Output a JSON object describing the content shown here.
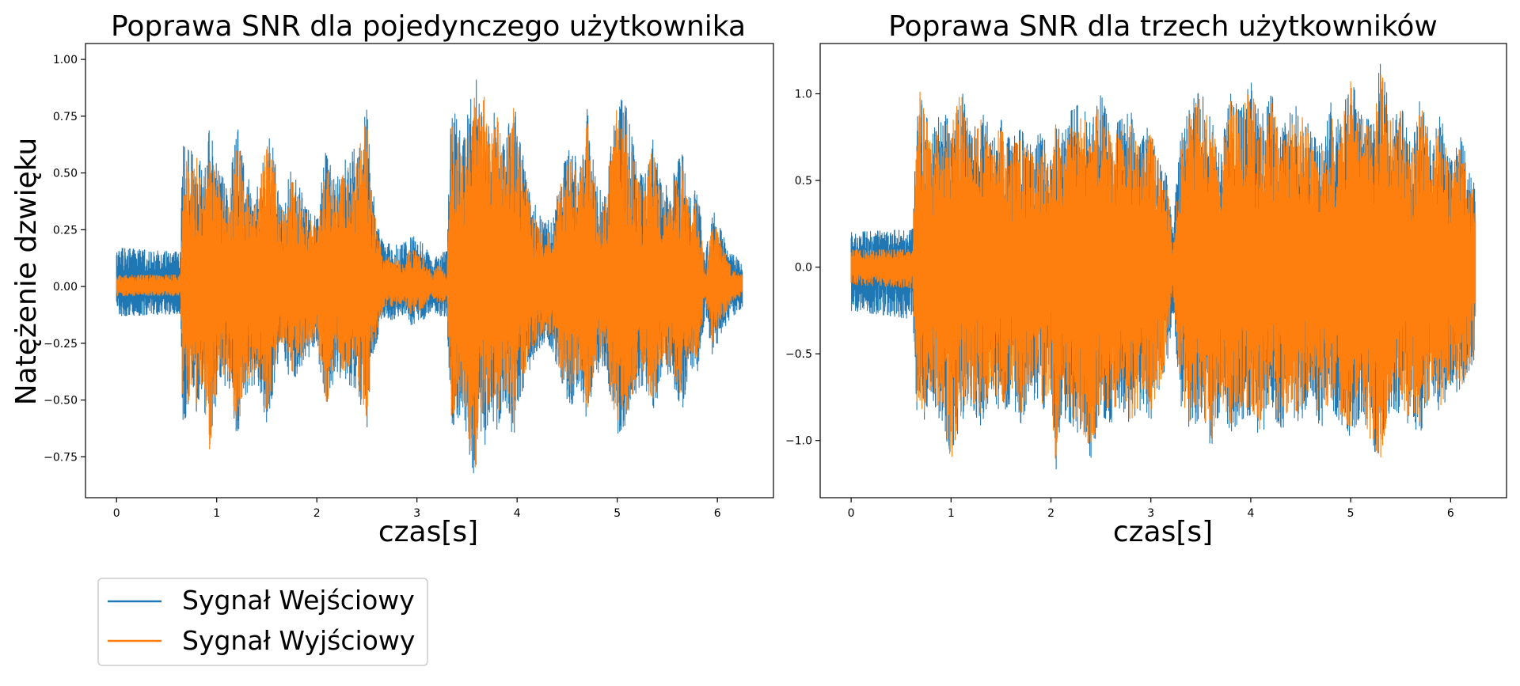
{
  "chart_data": [
    {
      "type": "line",
      "title": "Poprawa SNR dla pojedynczego użytkownika",
      "xlabel": "czas[s]",
      "ylabel": "Natężenie dzwięku",
      "xlim": [
        -0.31,
        6.56
      ],
      "ylim": [
        -0.93,
        1.07
      ],
      "xticks": [
        0,
        1,
        2,
        3,
        4,
        5,
        6
      ],
      "yticks": [
        -0.75,
        -0.5,
        -0.25,
        0.0,
        0.25,
        0.5,
        0.75,
        1.0
      ],
      "ytick_labels": [
        "−0.75",
        "−0.50",
        "−0.25",
        "0.00",
        "0.25",
        "0.50",
        "0.75",
        "1.00"
      ],
      "grid": false,
      "duration_s": 6.25,
      "series": [
        {
          "name": "Sygnał Wejściowy",
          "color": "#1f77b4",
          "noise_floor": 0.1,
          "envelope_x": [
            0.0,
            0.64,
            0.66,
            0.72,
            0.8,
            0.86,
            0.93,
            1.02,
            1.12,
            1.21,
            1.28,
            1.4,
            1.5,
            1.57,
            1.63,
            1.75,
            1.88,
            2.0,
            2.1,
            2.18,
            2.27,
            2.4,
            2.5,
            2.55,
            2.62,
            2.68,
            2.75,
            2.85,
            2.93,
            3.0,
            3.08,
            3.15,
            3.22,
            3.3,
            3.34,
            3.38,
            3.45,
            3.53,
            3.58,
            3.63,
            3.68,
            3.72,
            3.8,
            3.88,
            3.96,
            4.02,
            4.1,
            4.18,
            4.26,
            4.35,
            4.45,
            4.55,
            4.62,
            4.7,
            4.78,
            4.87,
            4.93,
            5.0,
            5.1,
            5.2,
            5.27,
            5.35,
            5.45,
            5.55,
            5.65,
            5.72,
            5.8,
            5.88,
            5.95,
            6.05,
            6.15,
            6.25
          ],
          "envelope_max": [
            0.17,
            0.15,
            0.62,
            0.6,
            0.62,
            0.5,
            0.7,
            0.5,
            0.45,
            0.7,
            0.5,
            0.42,
            0.68,
            0.6,
            0.35,
            0.52,
            0.38,
            0.3,
            0.63,
            0.45,
            0.55,
            0.62,
            0.78,
            0.45,
            0.25,
            0.18,
            0.2,
            0.18,
            0.23,
            0.21,
            0.18,
            0.12,
            0.17,
            0.17,
            0.8,
            0.76,
            0.65,
            0.8,
            0.96,
            0.8,
            0.87,
            0.7,
            0.8,
            0.6,
            0.85,
            0.65,
            0.5,
            0.36,
            0.28,
            0.3,
            0.55,
            0.65,
            0.48,
            0.78,
            0.48,
            0.38,
            0.62,
            0.85,
            0.78,
            0.52,
            0.47,
            0.66,
            0.42,
            0.48,
            0.6,
            0.38,
            0.44,
            0.13,
            0.35,
            0.23,
            0.14,
            0.12
          ],
          "envelope_min": [
            -0.13,
            -0.12,
            -0.6,
            -0.55,
            -0.6,
            -0.5,
            -0.68,
            -0.45,
            -0.43,
            -0.68,
            -0.48,
            -0.42,
            -0.6,
            -0.45,
            -0.28,
            -0.43,
            -0.33,
            -0.27,
            -0.57,
            -0.38,
            -0.42,
            -0.45,
            -0.63,
            -0.35,
            -0.2,
            -0.13,
            -0.15,
            -0.12,
            -0.17,
            -0.16,
            -0.14,
            -0.1,
            -0.13,
            -0.13,
            -0.62,
            -0.6,
            -0.55,
            -0.75,
            -0.85,
            -0.62,
            -0.7,
            -0.55,
            -0.63,
            -0.5,
            -0.68,
            -0.5,
            -0.4,
            -0.3,
            -0.25,
            -0.28,
            -0.48,
            -0.52,
            -0.41,
            -0.6,
            -0.4,
            -0.34,
            -0.52,
            -0.65,
            -0.6,
            -0.45,
            -0.43,
            -0.6,
            -0.38,
            -0.42,
            -0.55,
            -0.35,
            -0.38,
            -0.12,
            -0.3,
            -0.2,
            -0.13,
            -0.1
          ]
        },
        {
          "name": "Sygnał Wyjściowy",
          "color": "#ff7f0e",
          "noise_floor": 0.03,
          "envelope_x": [
            0.0,
            0.64,
            0.66,
            0.72,
            0.8,
            0.86,
            0.93,
            1.02,
            1.12,
            1.21,
            1.28,
            1.4,
            1.5,
            1.57,
            1.63,
            1.75,
            1.88,
            2.0,
            2.1,
            2.18,
            2.27,
            2.4,
            2.5,
            2.55,
            2.62,
            2.68,
            2.75,
            2.85,
            2.93,
            3.0,
            3.08,
            3.15,
            3.22,
            3.3,
            3.34,
            3.38,
            3.45,
            3.53,
            3.58,
            3.63,
            3.68,
            3.72,
            3.8,
            3.88,
            3.96,
            4.02,
            4.1,
            4.18,
            4.26,
            4.35,
            4.45,
            4.55,
            4.62,
            4.7,
            4.78,
            4.87,
            4.93,
            5.0,
            5.1,
            5.2,
            5.27,
            5.35,
            5.45,
            5.55,
            5.65,
            5.72,
            5.8,
            5.88,
            5.95,
            6.05,
            6.15,
            6.25
          ],
          "envelope_max": [
            0.05,
            0.05,
            0.55,
            0.55,
            0.57,
            0.45,
            0.65,
            0.45,
            0.4,
            0.65,
            0.45,
            0.38,
            0.63,
            0.55,
            0.3,
            0.47,
            0.33,
            0.25,
            0.58,
            0.4,
            0.5,
            0.57,
            0.74,
            0.4,
            0.2,
            0.12,
            0.15,
            0.1,
            0.17,
            0.15,
            0.12,
            0.06,
            0.1,
            0.05,
            0.75,
            0.72,
            0.6,
            0.75,
            0.95,
            0.75,
            0.85,
            0.65,
            0.75,
            0.55,
            0.8,
            0.6,
            0.45,
            0.3,
            0.22,
            0.25,
            0.5,
            0.6,
            0.43,
            0.73,
            0.43,
            0.33,
            0.57,
            0.8,
            0.73,
            0.47,
            0.42,
            0.61,
            0.37,
            0.43,
            0.55,
            0.33,
            0.39,
            0.06,
            0.3,
            0.18,
            0.07,
            0.05
          ],
          "envelope_min": [
            -0.04,
            -0.04,
            -0.55,
            -0.5,
            -0.55,
            -0.45,
            -0.72,
            -0.4,
            -0.38,
            -0.64,
            -0.43,
            -0.37,
            -0.55,
            -0.4,
            -0.23,
            -0.38,
            -0.28,
            -0.22,
            -0.52,
            -0.33,
            -0.37,
            -0.4,
            -0.58,
            -0.3,
            -0.15,
            -0.08,
            -0.1,
            -0.07,
            -0.12,
            -0.11,
            -0.09,
            -0.05,
            -0.08,
            -0.05,
            -0.57,
            -0.55,
            -0.5,
            -0.7,
            -0.8,
            -0.57,
            -0.65,
            -0.5,
            -0.58,
            -0.45,
            -0.63,
            -0.45,
            -0.35,
            -0.25,
            -0.2,
            -0.23,
            -0.43,
            -0.47,
            -0.36,
            -0.55,
            -0.35,
            -0.29,
            -0.47,
            -0.6,
            -0.55,
            -0.4,
            -0.38,
            -0.55,
            -0.33,
            -0.37,
            -0.5,
            -0.3,
            -0.33,
            -0.05,
            -0.25,
            -0.15,
            -0.06,
            -0.04
          ]
        }
      ]
    },
    {
      "type": "line",
      "title": "Poprawa SNR dla trzech użytkowników",
      "xlabel": "czas[s]",
      "ylabel": "",
      "xlim": [
        -0.31,
        6.56
      ],
      "ylim": [
        -1.33,
        1.29
      ],
      "xticks": [
        0,
        1,
        2,
        3,
        4,
        5,
        6
      ],
      "yticks": [
        -1.0,
        -0.5,
        0.0,
        0.5,
        1.0
      ],
      "ytick_labels": [
        "−1.0",
        "−0.5",
        "0.0",
        "0.5",
        "1.0"
      ],
      "grid": false,
      "duration_s": 6.25,
      "series": [
        {
          "name": "Sygnał Wejściowy",
          "color": "#1f77b4",
          "noise_floor": 0.25,
          "envelope_x": [
            0.0,
            0.62,
            0.65,
            0.7,
            0.8,
            0.9,
            1.0,
            1.1,
            1.2,
            1.3,
            1.4,
            1.5,
            1.6,
            1.7,
            1.8,
            1.9,
            2.0,
            2.05,
            2.1,
            2.2,
            2.3,
            2.4,
            2.5,
            2.6,
            2.7,
            2.8,
            2.9,
            3.0,
            3.1,
            3.18,
            3.22,
            3.3,
            3.4,
            3.5,
            3.6,
            3.7,
            3.8,
            3.9,
            4.0,
            4.1,
            4.2,
            4.3,
            4.4,
            4.5,
            4.6,
            4.7,
            4.8,
            4.9,
            5.0,
            5.1,
            5.2,
            5.3,
            5.4,
            5.5,
            5.6,
            5.7,
            5.8,
            5.9,
            6.0,
            6.1,
            6.2,
            6.25
          ],
          "envelope_max": [
            0.2,
            0.22,
            0.8,
            1.02,
            0.75,
            0.9,
            0.85,
            1.05,
            0.75,
            0.9,
            0.8,
            0.85,
            0.72,
            0.82,
            0.7,
            0.8,
            0.62,
            0.88,
            0.75,
            0.9,
            0.95,
            0.82,
            1.0,
            0.8,
            0.85,
            0.9,
            0.7,
            0.9,
            0.6,
            0.5,
            0.25,
            0.75,
            0.95,
            1.02,
            0.85,
            0.7,
            1.0,
            0.9,
            1.08,
            0.85,
            1.02,
            0.78,
            0.9,
            0.95,
            0.78,
            0.7,
            0.95,
            0.85,
            1.1,
            0.9,
            0.85,
            1.18,
            0.9,
            0.95,
            0.7,
            1.0,
            0.72,
            0.88,
            0.6,
            0.75,
            0.55,
            0.45
          ],
          "envelope_min": [
            -0.25,
            -0.3,
            -0.8,
            -0.95,
            -0.75,
            -0.9,
            -1.08,
            -0.9,
            -0.8,
            -0.92,
            -0.72,
            -0.85,
            -0.78,
            -0.9,
            -0.72,
            -0.85,
            -0.75,
            -1.18,
            -0.85,
            -0.9,
            -0.98,
            -1.1,
            -0.85,
            -0.9,
            -0.8,
            -0.95,
            -0.82,
            -0.88,
            -0.7,
            -0.5,
            -0.25,
            -0.8,
            -0.95,
            -0.85,
            -1.05,
            -0.8,
            -0.95,
            -0.88,
            -0.85,
            -1.0,
            -0.8,
            -0.95,
            -0.85,
            -0.9,
            -0.72,
            -0.95,
            -0.8,
            -0.9,
            -0.98,
            -0.85,
            -1.05,
            -1.08,
            -0.8,
            -0.85,
            -0.92,
            -0.95,
            -0.78,
            -0.85,
            -0.7,
            -0.75,
            -0.6,
            -0.5
          ]
        },
        {
          "name": "Sygnał Wyjściowy",
          "color": "#ff7f0e",
          "noise_floor": 0.1,
          "envelope_x": [
            0.0,
            0.62,
            0.65,
            0.7,
            0.8,
            0.9,
            1.0,
            1.1,
            1.2,
            1.3,
            1.4,
            1.5,
            1.6,
            1.7,
            1.8,
            1.9,
            2.0,
            2.05,
            2.1,
            2.2,
            2.3,
            2.4,
            2.5,
            2.6,
            2.7,
            2.8,
            2.9,
            3.0,
            3.1,
            3.18,
            3.22,
            3.3,
            3.4,
            3.5,
            3.6,
            3.7,
            3.8,
            3.9,
            4.0,
            4.1,
            4.2,
            4.3,
            4.4,
            4.5,
            4.6,
            4.7,
            4.8,
            4.9,
            5.0,
            5.1,
            5.2,
            5.3,
            5.4,
            5.5,
            5.6,
            5.7,
            5.8,
            5.9,
            6.0,
            6.1,
            6.2,
            6.25
          ],
          "envelope_max": [
            0.1,
            0.1,
            0.75,
            1.08,
            0.7,
            0.85,
            0.8,
            1.02,
            0.7,
            0.85,
            0.75,
            0.8,
            0.67,
            0.77,
            0.65,
            0.75,
            0.57,
            0.83,
            0.7,
            0.85,
            0.9,
            0.77,
            0.97,
            0.75,
            0.8,
            0.85,
            0.65,
            0.85,
            0.55,
            0.45,
            0.1,
            0.7,
            0.9,
            0.98,
            0.8,
            0.65,
            0.97,
            0.87,
            1.05,
            0.8,
            0.97,
            0.73,
            0.85,
            0.9,
            0.73,
            0.65,
            0.9,
            0.8,
            1.07,
            0.87,
            0.8,
            1.17,
            0.85,
            0.9,
            0.65,
            0.95,
            0.67,
            0.83,
            0.55,
            0.7,
            0.5,
            0.4
          ],
          "envelope_min": [
            -0.1,
            -0.12,
            -0.75,
            -0.9,
            -0.7,
            -0.85,
            -1.12,
            -0.85,
            -0.75,
            -0.87,
            -0.67,
            -0.8,
            -0.73,
            -0.85,
            -0.67,
            -0.8,
            -0.7,
            -1.22,
            -0.8,
            -0.85,
            -0.93,
            -1.05,
            -0.8,
            -0.85,
            -0.75,
            -0.9,
            -0.77,
            -0.83,
            -0.65,
            -0.45,
            -0.1,
            -0.75,
            -0.9,
            -0.8,
            -1.0,
            -0.75,
            -0.9,
            -0.83,
            -0.8,
            -0.95,
            -0.75,
            -0.9,
            -0.8,
            -0.85,
            -0.67,
            -0.9,
            -0.75,
            -0.85,
            -0.93,
            -0.8,
            -1.0,
            -1.1,
            -0.75,
            -0.8,
            -0.87,
            -0.9,
            -0.73,
            -0.8,
            -0.65,
            -0.7,
            -0.55,
            -0.45
          ]
        }
      ]
    }
  ],
  "legend": {
    "placement": "below-left",
    "entries": [
      {
        "label": "Sygnał Wejściowy",
        "color": "#1f77b4"
      },
      {
        "label": "Sygnał Wyjściowy",
        "color": "#ff7f0e"
      }
    ]
  }
}
